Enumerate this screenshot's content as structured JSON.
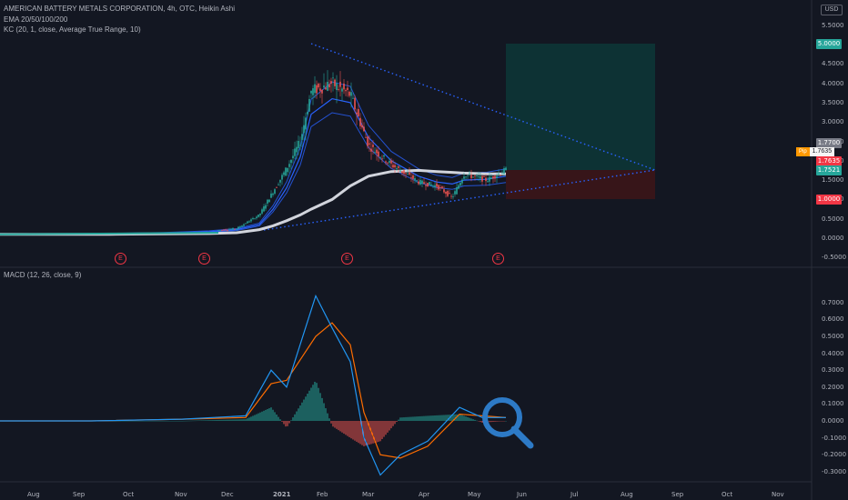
{
  "legend": {
    "symbol": "AMERICAN BATTERY METALS CORPORATION, 4h, OTC, Heikin Ashi",
    "ema": "EMA 20/50/100/200",
    "kc": "KC (20, 1, close, Average True Range, 10)",
    "macd": "MACD (12, 26, close, 9)"
  },
  "currency": "USD",
  "earnings_marker": "E",
  "price_axis_labels": [
    "5.5000",
    "4.5000",
    "4.0000",
    "3.5000",
    "3.0000",
    "2.5000",
    "2.0000",
    "1.5000",
    "1.0000",
    "0.5000",
    "0.0000",
    "-0.5000"
  ],
  "price_tags": [
    {
      "label": "5.0000",
      "color": "#26a69a"
    },
    {
      "label": "1.7700",
      "color": "#787b86"
    },
    {
      "label": "1.7635",
      "color": "#f23645"
    },
    {
      "label": "1.7521",
      "color": "#26a69a"
    },
    {
      "label": "1.0000",
      "color": "#f23645"
    }
  ],
  "pip_tag": {
    "label": "Pip",
    "value": "1.7635",
    "color": "#ff9800"
  },
  "macd_axis_labels": [
    "0.7000",
    "0.6000",
    "0.5000",
    "0.4000",
    "0.3000",
    "0.2000",
    "0.1000",
    "0.0000",
    "-0.1000",
    "-0.2000",
    "-0.3000"
  ],
  "time_axis_labels": [
    "Aug",
    "Sep",
    "Oct",
    "Nov",
    "Dec",
    "2021",
    "Feb",
    "Mar",
    "Apr",
    "May",
    "Jun",
    "Jul",
    "Aug",
    "Sep",
    "Oct",
    "Nov"
  ],
  "colors": {
    "up": "#26a69a",
    "down": "#ef5350",
    "ema_fast": "#2962ff",
    "ema_slow": "#d1d4dc",
    "macd": "#2196f3",
    "signal": "#ff6d00",
    "target_zone": "#0c3a39",
    "stop_zone": "#3c1518",
    "trend": "#2962ff"
  },
  "icons": [
    "magnifier-icon"
  ],
  "chart_data": [
    {
      "type": "line",
      "name": "price",
      "x": [
        "2020-07",
        "2020-08",
        "2020-09",
        "2020-10",
        "2020-11",
        "2020-12-01",
        "2020-12-15",
        "2021-01-01",
        "2021-01-10",
        "2021-01-20",
        "2021-01-27",
        "2021-02-05",
        "2021-02-15",
        "2021-03-01",
        "2021-03-15",
        "2021-04-01",
        "2021-04-15",
        "2021-04-25",
        "2021-05-01",
        "2021-05-15",
        "2021-05-25"
      ],
      "y": [
        0.1,
        0.1,
        0.11,
        0.14,
        0.18,
        0.25,
        0.6,
        1.2,
        1.8,
        2.5,
        3.8,
        4.0,
        3.7,
        2.4,
        1.9,
        1.45,
        1.35,
        1.05,
        1.65,
        1.5,
        1.76
      ],
      "series": [
        {
          "name": "EMA 20/50/100/200",
          "y": [
            0.1,
            0.1,
            0.11,
            0.13,
            0.17,
            0.22,
            0.35,
            0.75,
            1.3,
            2.1,
            3.2,
            3.6,
            3.5,
            2.6,
            2.0,
            1.6,
            1.45,
            1.4,
            1.5,
            1.52,
            1.6
          ]
        },
        {
          "name": "EMA 20/50/100/200",
          "y": [
            0.1,
            0.1,
            0.1,
            0.11,
            0.12,
            0.14,
            0.22,
            0.32,
            0.45,
            0.6,
            0.75,
            1.0,
            1.35,
            1.6,
            1.72,
            1.75,
            1.72,
            1.7,
            1.68,
            1.66,
            1.66
          ]
        }
      ],
      "ylim": [
        -0.5,
        5.8
      ],
      "annotations": {
        "target": 5.0,
        "entry": 1.77,
        "stop": 1.0
      }
    },
    {
      "type": "bar",
      "name": "MACD (12, 26, close, 9)",
      "x": [
        "2020-07",
        "2020-09",
        "2020-11",
        "2020-12-20",
        "2021-01-05",
        "2021-01-15",
        "2021-01-27",
        "2021-02-05",
        "2021-02-15",
        "2021-03-01",
        "2021-03-15",
        "2021-04-01",
        "2021-04-15",
        "2021-05-01",
        "2021-05-15",
        "2021-05-25"
      ],
      "series": [
        {
          "name": "MACD",
          "values": [
            0.0,
            0.0,
            0.01,
            0.03,
            0.3,
            0.2,
            0.74,
            0.55,
            0.35,
            -0.1,
            -0.32,
            -0.2,
            -0.12,
            0.08,
            0.02,
            0.02
          ]
        },
        {
          "name": "Signal",
          "values": [
            0.0,
            0.0,
            0.01,
            0.02,
            0.22,
            0.24,
            0.5,
            0.58,
            0.45,
            0.05,
            -0.2,
            -0.22,
            -0.15,
            0.04,
            0.03,
            0.02
          ]
        },
        {
          "name": "Histogram",
          "values": [
            0.0,
            0.0,
            0.0,
            0.01,
            0.08,
            -0.04,
            0.24,
            -0.03,
            -0.1,
            -0.15,
            -0.12,
            0.02,
            0.03,
            0.04,
            -0.01,
            0.0
          ]
        }
      ],
      "ylim": [
        -0.34,
        0.78
      ]
    }
  ]
}
